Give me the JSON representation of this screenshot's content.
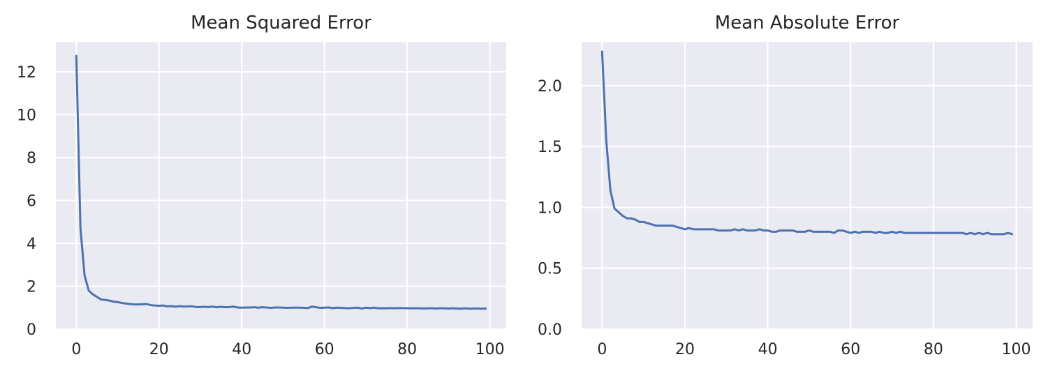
{
  "chart_data": [
    {
      "type": "line",
      "title": "Mean Squared Error",
      "xlabel": "",
      "ylabel": "",
      "xlim": [
        -4.95,
        103.95
      ],
      "ylim": [
        0,
        13.4
      ],
      "xticks": [
        0,
        20,
        40,
        60,
        80,
        100
      ],
      "xtick_labels": [
        "0",
        "20",
        "40",
        "60",
        "80",
        "100"
      ],
      "yticks": [
        0,
        2,
        4,
        6,
        8,
        10,
        12
      ],
      "ytick_labels": [
        "0",
        "2",
        "4",
        "6",
        "8",
        "10",
        "12"
      ],
      "grid": true,
      "series": [
        {
          "color": "#4c72b0",
          "x": [
            0,
            1,
            2,
            3,
            4,
            5,
            6,
            7,
            8,
            9,
            10,
            11,
            12,
            13,
            14,
            15,
            16,
            17,
            18,
            19,
            20,
            21,
            22,
            23,
            24,
            25,
            26,
            27,
            28,
            29,
            30,
            31,
            32,
            33,
            34,
            35,
            36,
            37,
            38,
            39,
            40,
            41,
            42,
            43,
            44,
            45,
            46,
            47,
            48,
            49,
            50,
            51,
            52,
            53,
            54,
            55,
            56,
            57,
            58,
            59,
            60,
            61,
            62,
            63,
            64,
            65,
            66,
            67,
            68,
            69,
            70,
            71,
            72,
            73,
            74,
            75,
            76,
            77,
            78,
            79,
            80,
            81,
            82,
            83,
            84,
            85,
            86,
            87,
            88,
            89,
            90,
            91,
            92,
            93,
            94,
            95,
            96,
            97,
            98,
            99
          ],
          "values": [
            12.75,
            4.7,
            2.5,
            1.8,
            1.62,
            1.5,
            1.38,
            1.36,
            1.33,
            1.28,
            1.26,
            1.22,
            1.19,
            1.17,
            1.15,
            1.15,
            1.16,
            1.17,
            1.12,
            1.1,
            1.09,
            1.1,
            1.06,
            1.07,
            1.05,
            1.07,
            1.05,
            1.06,
            1.06,
            1.03,
            1.03,
            1.04,
            1.03,
            1.05,
            1.02,
            1.04,
            1.02,
            1.03,
            1.05,
            1.01,
            1.0,
            1.01,
            1.01,
            1.02,
            1.0,
            1.02,
            1.01,
            0.99,
            1.01,
            1.01,
            1.0,
            0.99,
            1.0,
            1.0,
            1.0,
            0.99,
            0.98,
            1.05,
            1.02,
            0.99,
            1.0,
            1.01,
            0.98,
            1.0,
            0.99,
            0.98,
            0.97,
            0.99,
            1.0,
            0.96,
            1.0,
            0.98,
            1.0,
            0.97,
            0.97,
            0.97,
            0.98,
            0.97,
            0.98,
            0.98,
            0.97,
            0.97,
            0.97,
            0.97,
            0.96,
            0.97,
            0.97,
            0.96,
            0.97,
            0.97,
            0.96,
            0.97,
            0.96,
            0.95,
            0.97,
            0.95,
            0.96,
            0.96,
            0.95,
            0.96
          ]
        }
      ]
    },
    {
      "type": "line",
      "title": "Mean Absolute Error",
      "xlabel": "",
      "ylabel": "",
      "xlim": [
        -4.95,
        103.95
      ],
      "ylim": [
        0,
        2.36
      ],
      "xticks": [
        0,
        20,
        40,
        60,
        80,
        100
      ],
      "xtick_labels": [
        "0",
        "20",
        "40",
        "60",
        "80",
        "100"
      ],
      "yticks": [
        0,
        0.5,
        1.0,
        1.5,
        2.0
      ],
      "ytick_labels": [
        "0.0",
        "0.5",
        "1.0",
        "1.5",
        "2.0"
      ],
      "grid": true,
      "series": [
        {
          "color": "#4c72b0",
          "x": [
            0,
            1,
            2,
            3,
            4,
            5,
            6,
            7,
            8,
            9,
            10,
            11,
            12,
            13,
            14,
            15,
            16,
            17,
            18,
            19,
            20,
            21,
            22,
            23,
            24,
            25,
            26,
            27,
            28,
            29,
            30,
            31,
            32,
            33,
            34,
            35,
            36,
            37,
            38,
            39,
            40,
            41,
            42,
            43,
            44,
            45,
            46,
            47,
            48,
            49,
            50,
            51,
            52,
            53,
            54,
            55,
            56,
            57,
            58,
            59,
            60,
            61,
            62,
            63,
            64,
            65,
            66,
            67,
            68,
            69,
            70,
            71,
            72,
            73,
            74,
            75,
            76,
            77,
            78,
            79,
            80,
            81,
            82,
            83,
            84,
            85,
            86,
            87,
            88,
            89,
            90,
            91,
            92,
            93,
            94,
            95,
            96,
            97,
            98,
            99
          ],
          "values": [
            2.28,
            1.55,
            1.14,
            0.99,
            0.96,
            0.93,
            0.91,
            0.91,
            0.9,
            0.88,
            0.88,
            0.87,
            0.86,
            0.85,
            0.85,
            0.85,
            0.85,
            0.85,
            0.84,
            0.83,
            0.82,
            0.83,
            0.82,
            0.82,
            0.82,
            0.82,
            0.82,
            0.82,
            0.81,
            0.81,
            0.81,
            0.81,
            0.82,
            0.81,
            0.82,
            0.81,
            0.81,
            0.81,
            0.82,
            0.81,
            0.81,
            0.8,
            0.8,
            0.81,
            0.81,
            0.81,
            0.81,
            0.8,
            0.8,
            0.8,
            0.81,
            0.8,
            0.8,
            0.8,
            0.8,
            0.8,
            0.79,
            0.81,
            0.81,
            0.8,
            0.79,
            0.8,
            0.79,
            0.8,
            0.8,
            0.8,
            0.79,
            0.8,
            0.79,
            0.79,
            0.8,
            0.79,
            0.8,
            0.79,
            0.79,
            0.79,
            0.79,
            0.79,
            0.79,
            0.79,
            0.79,
            0.79,
            0.79,
            0.79,
            0.79,
            0.79,
            0.79,
            0.79,
            0.78,
            0.79,
            0.78,
            0.79,
            0.78,
            0.79,
            0.78,
            0.78,
            0.78,
            0.78,
            0.79,
            0.78
          ]
        }
      ]
    }
  ]
}
